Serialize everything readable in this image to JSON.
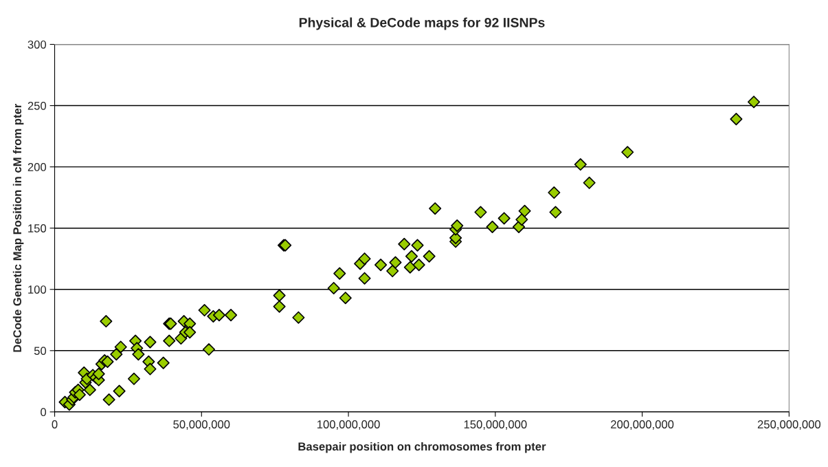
{
  "chart_data": {
    "type": "scatter",
    "title": "Physical & DeCode maps for 92 IISNPs",
    "xlabel": "Basepair position on chromosomes from pter",
    "ylabel": "DeCode Genetic Map Position in cM from pter",
    "x": [
      3500000,
      5000000,
      6000000,
      6500000,
      7000000,
      8000000,
      8500000,
      10000000,
      10500000,
      11000000,
      12000000,
      13000000,
      14000000,
      15000000,
      15000000,
      16000000,
      17000000,
      18000000,
      17500000,
      18500000,
      21000000,
      22500000,
      22000000,
      27000000,
      27500000,
      28000000,
      28500000,
      32000000,
      32500000,
      32500000,
      37000000,
      39000000,
      39500000,
      39000000,
      43000000,
      44000000,
      44500000,
      46000000,
      46000000,
      51000000,
      52500000,
      54000000,
      56000000,
      60000000,
      76500000,
      76500000,
      78000000,
      78500000,
      83000000,
      95000000,
      97000000,
      99000000,
      104000000,
      105500000,
      105500000,
      111000000,
      115000000,
      116000000,
      119000000,
      121000000,
      121500000,
      123500000,
      124000000,
      127500000,
      129500000,
      136500000,
      136500000,
      136500000,
      137000000,
      145000000,
      149000000,
      153000000,
      158000000,
      159000000,
      160000000,
      170000000,
      170500000,
      179000000,
      182000000,
      195000000,
      232000000,
      238000000
    ],
    "values": [
      8,
      6,
      10,
      12,
      16,
      18,
      14,
      32,
      24,
      27,
      18,
      30,
      28,
      26,
      31,
      39,
      42,
      41,
      74,
      10,
      47,
      53,
      17,
      27,
      58,
      52,
      47,
      41,
      57,
      35,
      40,
      72,
      72,
      58,
      60,
      74,
      65,
      72,
      65,
      83,
      51,
      78,
      79,
      79,
      95,
      86,
      136,
      136,
      77,
      101,
      113,
      93,
      121,
      125,
      109,
      120,
      115,
      122,
      137,
      118,
      127,
      136,
      120,
      127,
      166,
      139,
      142,
      149,
      152,
      163,
      151,
      158,
      151,
      157,
      164,
      179,
      163,
      202,
      187,
      212,
      239,
      253
    ],
    "color": "#99cc00",
    "marker": "diamond",
    "grid": "y",
    "xlim": [
      0,
      250000000
    ],
    "xticks": [
      {
        "value": 0,
        "label": "0"
      },
      {
        "value": 50000000,
        "label": "50,000,000"
      },
      {
        "value": 100000000,
        "label": "100,000,000"
      },
      {
        "value": 150000000,
        "label": "150,000,000"
      },
      {
        "value": 200000000,
        "label": "200,000,000"
      },
      {
        "value": 250000000,
        "label": "250,000,000"
      }
    ],
    "ylim": [
      0,
      300
    ],
    "yticks": [
      0,
      50,
      100,
      150,
      200,
      250,
      300
    ]
  }
}
